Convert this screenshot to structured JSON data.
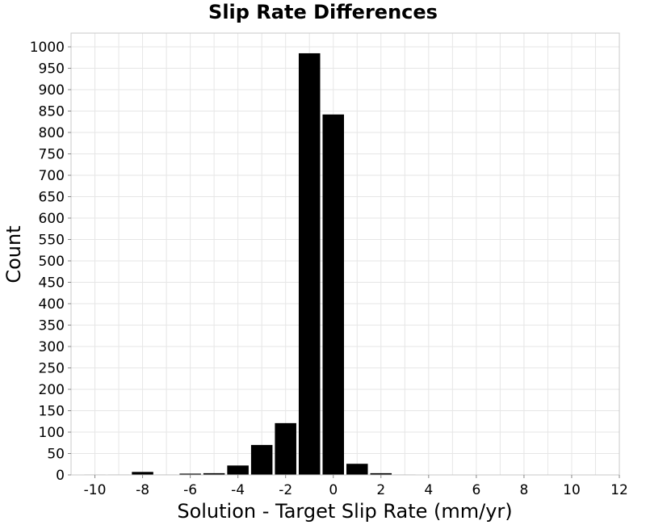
{
  "chart_data": {
    "type": "bar",
    "title": "Slip Rate Differences",
    "xlabel": "Solution - Target Slip Rate (mm/yr)",
    "ylabel": "Count",
    "xlim": [
      -11,
      12
    ],
    "ylim": [
      0,
      1000
    ],
    "x_ticks": [
      -10,
      -8,
      -6,
      -4,
      -2,
      0,
      2,
      4,
      6,
      8,
      10,
      12
    ],
    "y_ticks": [
      0,
      50,
      100,
      150,
      200,
      250,
      300,
      350,
      400,
      450,
      500,
      550,
      600,
      650,
      700,
      750,
      800,
      850,
      900,
      950,
      1000
    ],
    "grid": true,
    "bin_width": 1,
    "categories": [
      -10,
      -9,
      -8,
      -7,
      -6,
      -5,
      -4,
      -3,
      -2,
      -1,
      0,
      1,
      2,
      3,
      4,
      5,
      6,
      7,
      8,
      9,
      10,
      11
    ],
    "values": [
      1,
      1,
      7,
      1,
      3,
      4,
      22,
      70,
      121,
      985,
      842,
      26,
      4,
      1,
      0,
      0,
      0,
      0,
      0,
      0,
      0,
      0
    ],
    "colors": {
      "bar": "#000000",
      "grid": "#e6e6e6",
      "frame": "#c8c8c8",
      "background": "#ffffff"
    }
  }
}
